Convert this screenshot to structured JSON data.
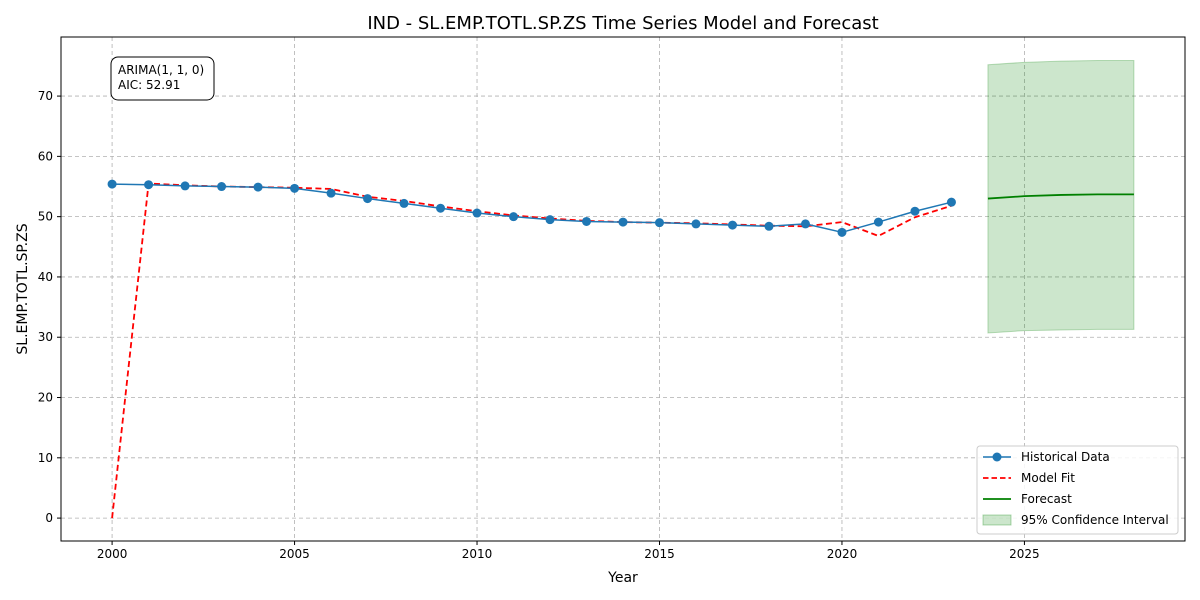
{
  "chart_data": {
    "type": "line",
    "title": "IND - SL.EMP.TOTL.SP.ZS Time Series Model and Forecast",
    "xlabel": "Year",
    "ylabel": "SL.EMP.TOTL.SP.ZS",
    "xlim": [
      1998.6,
      2029.4
    ],
    "ylim": [
      -3.8,
      79.8
    ],
    "xticks": [
      2000,
      2005,
      2010,
      2015,
      2020,
      2025
    ],
    "yticks": [
      0,
      10,
      20,
      30,
      40,
      50,
      60,
      70
    ],
    "grid": true,
    "legend_position": "bottom-right",
    "annotation": [
      "ARIMA(1, 1, 0)",
      "AIC: 52.91"
    ],
    "annotation_position": "top-left",
    "series": [
      {
        "name": "Historical Data",
        "style": "line-markers",
        "color": "#1f77b4",
        "x": [
          2000,
          2001,
          2002,
          2003,
          2004,
          2005,
          2006,
          2007,
          2008,
          2009,
          2010,
          2011,
          2012,
          2013,
          2014,
          2015,
          2016,
          2017,
          2018,
          2019,
          2020,
          2021,
          2022,
          2023
        ],
        "values": [
          55.4,
          55.3,
          55.1,
          55.0,
          54.9,
          54.7,
          53.9,
          53.0,
          52.2,
          51.4,
          50.6,
          50.0,
          49.5,
          49.2,
          49.1,
          49.0,
          48.8,
          48.6,
          48.4,
          48.8,
          47.4,
          49.1,
          50.9,
          52.4
        ]
      },
      {
        "name": "Model Fit",
        "style": "dashed",
        "color": "#ff0000",
        "x": [
          2000,
          2001,
          2002,
          2003,
          2004,
          2005,
          2006,
          2007,
          2008,
          2009,
          2010,
          2011,
          2012,
          2013,
          2014,
          2015,
          2016,
          2017,
          2018,
          2019,
          2020,
          2021,
          2022,
          2023
        ],
        "values": [
          0.0,
          55.5,
          55.2,
          55.0,
          54.9,
          54.8,
          54.6,
          53.3,
          52.6,
          51.7,
          50.9,
          50.2,
          49.7,
          49.3,
          49.1,
          49.0,
          48.9,
          48.7,
          48.5,
          48.4,
          49.1,
          46.8,
          49.9,
          51.8
        ]
      },
      {
        "name": "Forecast",
        "style": "solid",
        "color": "#008000",
        "x": [
          2024,
          2025,
          2026,
          2027,
          2028
        ],
        "values": [
          53.0,
          53.4,
          53.6,
          53.7,
          53.7
        ]
      },
      {
        "name": "95% Confidence Interval",
        "style": "band",
        "color": "#008000",
        "x": [
          2024,
          2025,
          2026,
          2027,
          2028
        ],
        "lower": [
          30.7,
          31.1,
          31.2,
          31.3,
          31.3
        ],
        "upper": [
          75.2,
          75.6,
          75.8,
          75.9,
          75.9
        ]
      }
    ]
  }
}
